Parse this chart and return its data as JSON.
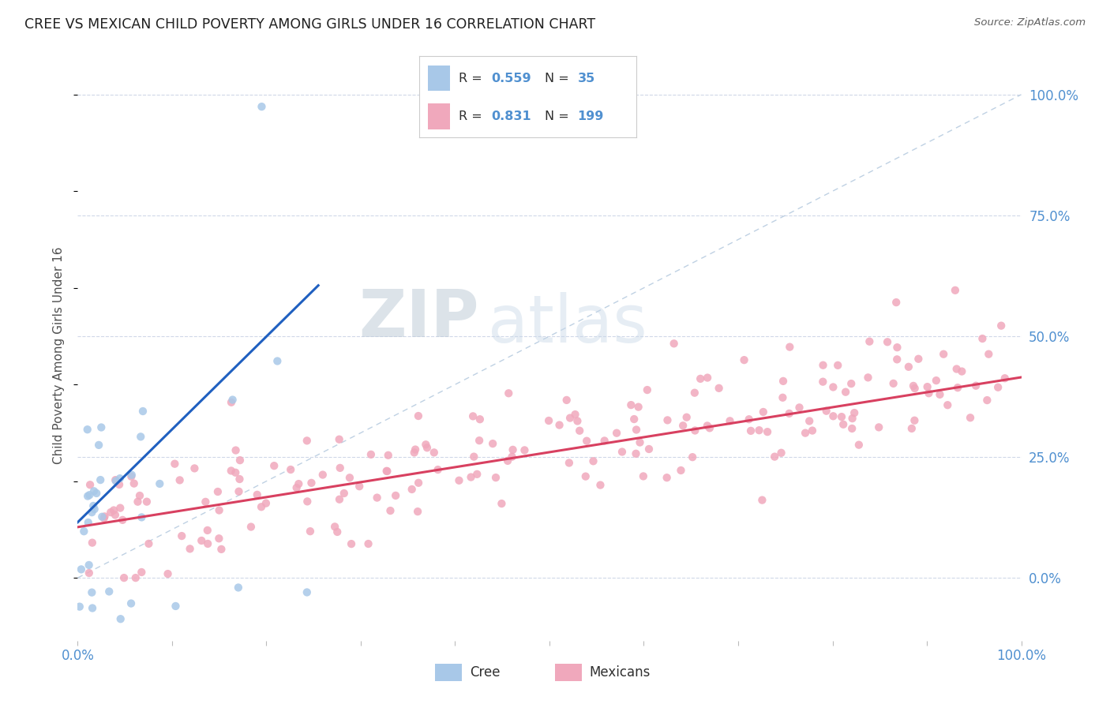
{
  "title": "CREE VS MEXICAN CHILD POVERTY AMONG GIRLS UNDER 16 CORRELATION CHART",
  "source": "Source: ZipAtlas.com",
  "ylabel": "Child Poverty Among Girls Under 16",
  "xlim": [
    0,
    1.0
  ],
  "ylim": [
    -0.13,
    1.05
  ],
  "watermark_zip": "ZIP",
  "watermark_atlas": "atlas",
  "cree_R": 0.559,
  "cree_N": 35,
  "mexican_R": 0.831,
  "mexican_N": 199,
  "cree_color": "#a8c8e8",
  "mexican_color": "#f0a8bc",
  "cree_line_color": "#2060c0",
  "mexican_line_color": "#d84060",
  "diagonal_color": "#b8cce0",
  "background_color": "#ffffff",
  "grid_color": "#d0d8e8",
  "tick_label_color": "#5090d0",
  "title_color": "#202020",
  "yticks": [
    0.0,
    0.25,
    0.5,
    0.75,
    1.0
  ],
  "ytick_labels": [
    "0.0%",
    "25.0%",
    "50.0%",
    "75.0%",
    "100.0%"
  ],
  "xtick_left_label": "0.0%",
  "xtick_right_label": "100.0%"
}
